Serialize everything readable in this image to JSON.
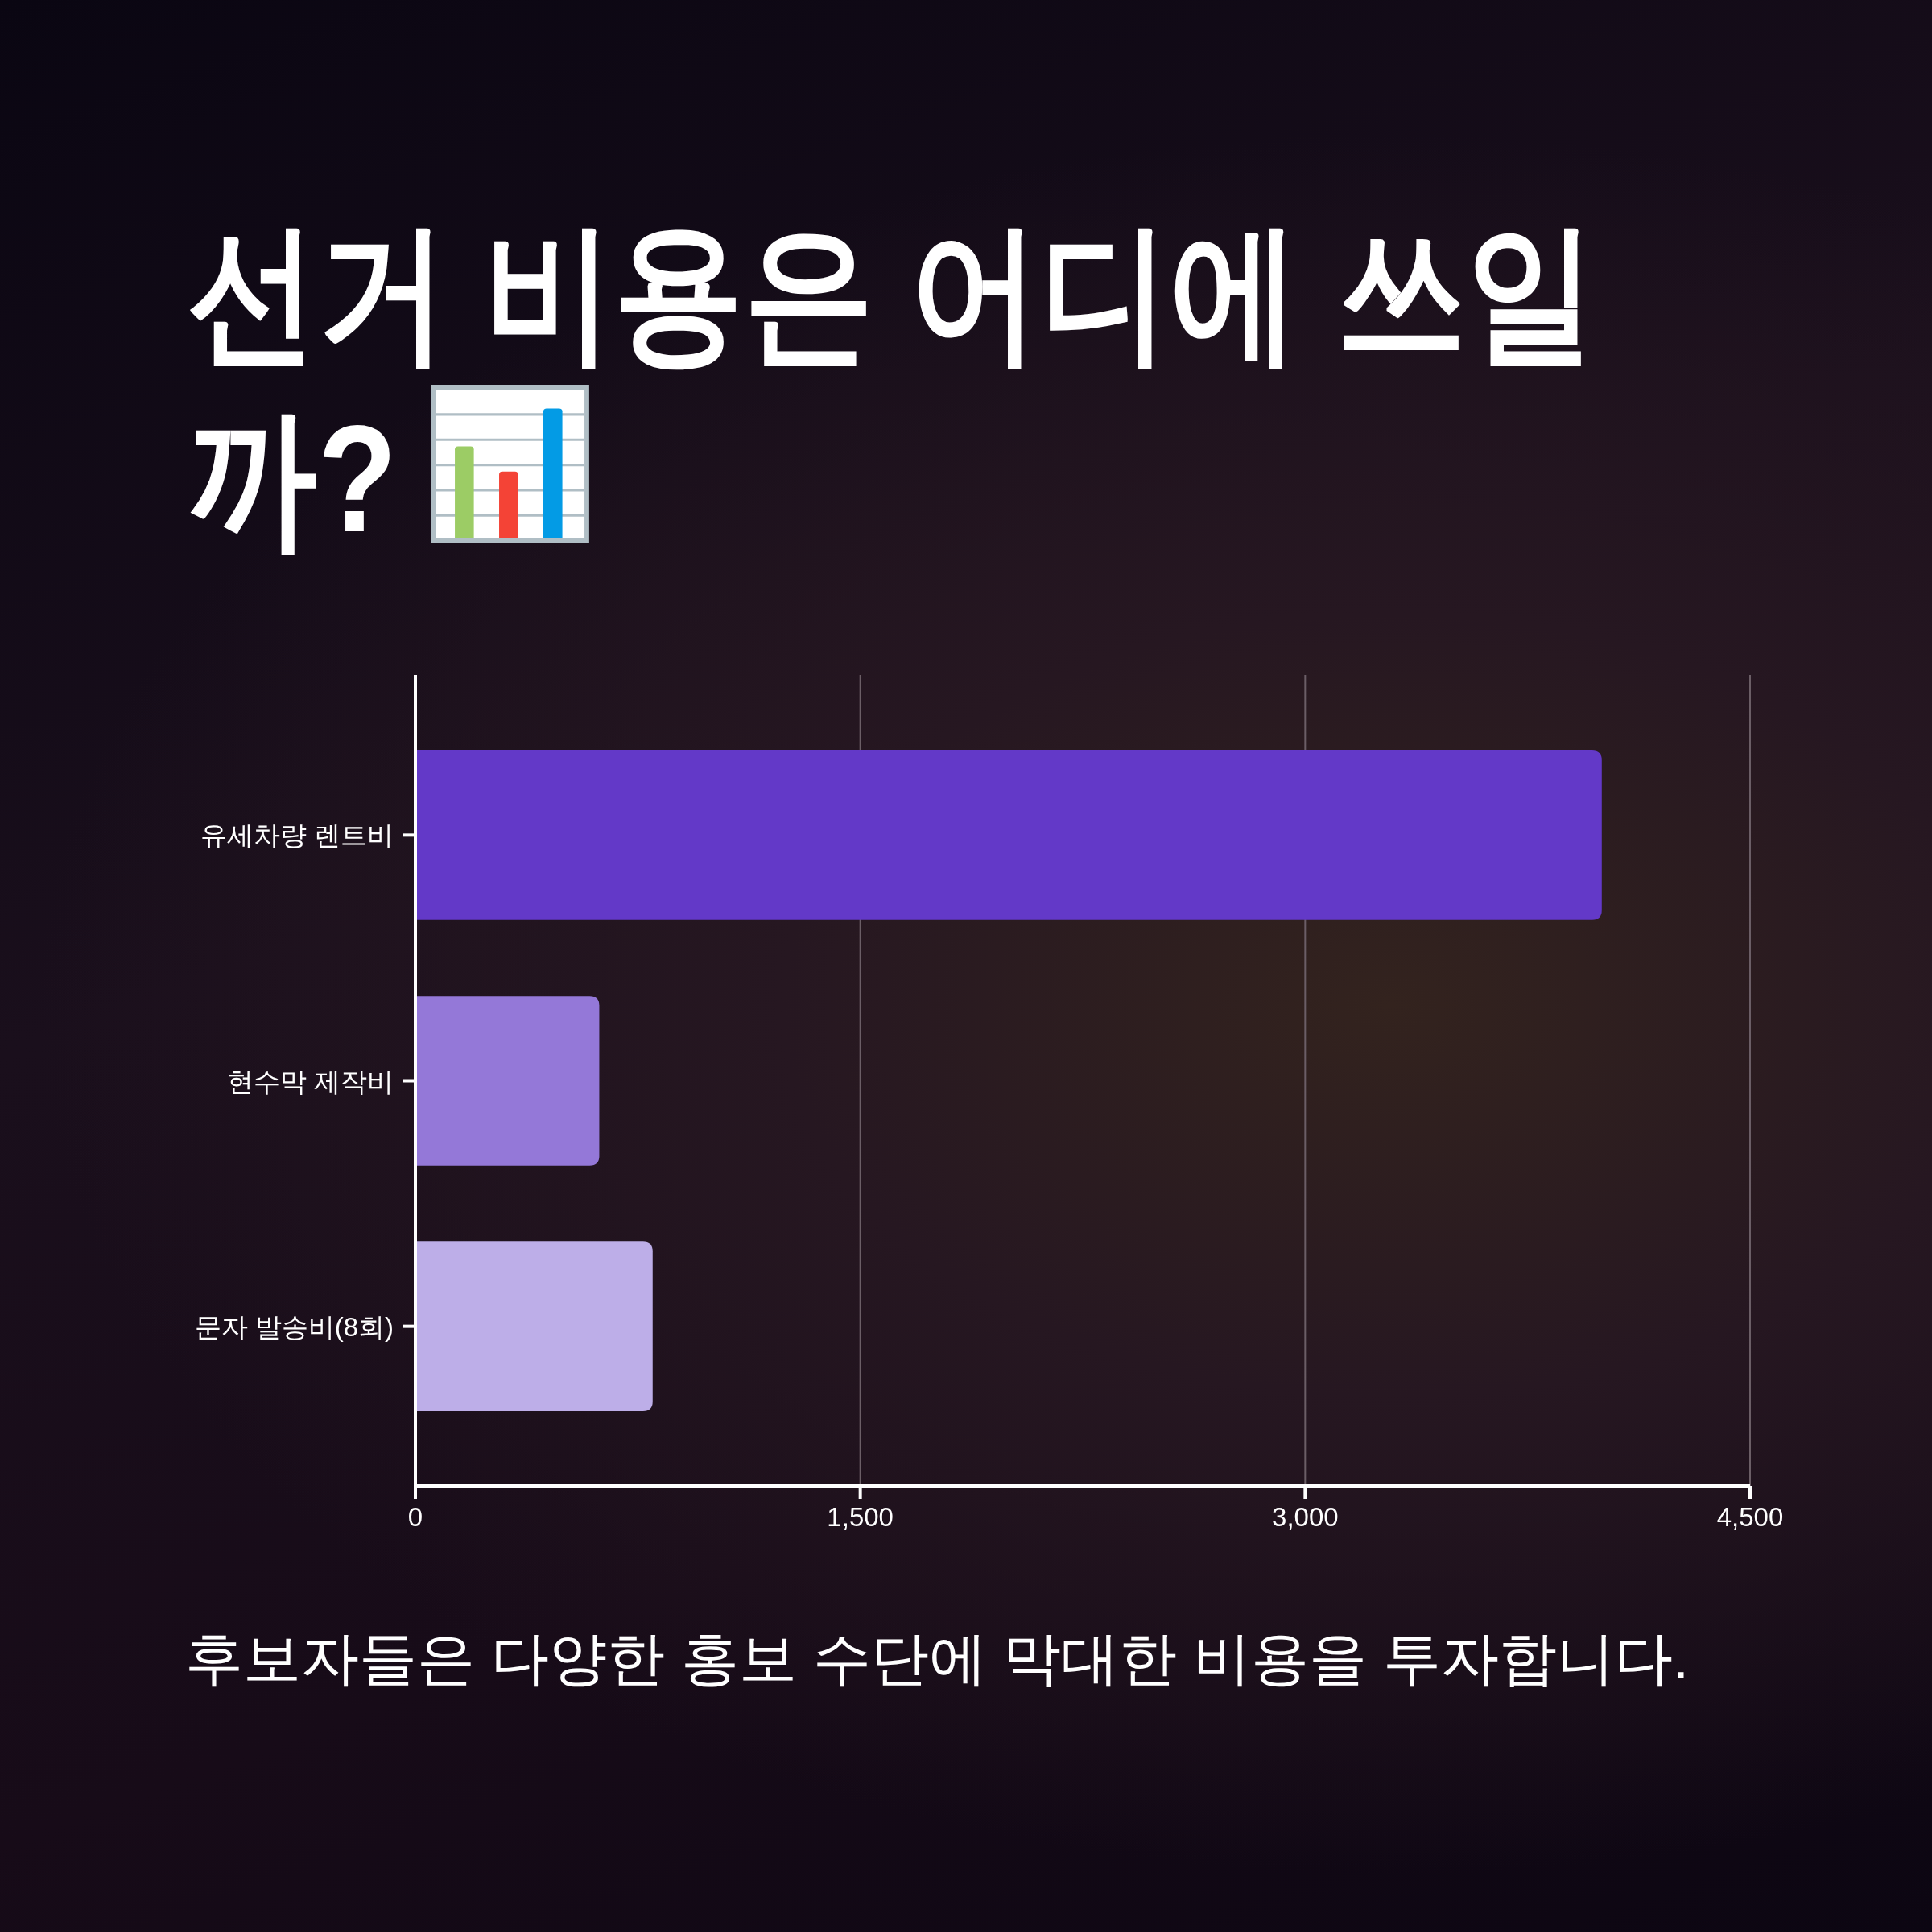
{
  "chart_data": {
    "type": "bar",
    "orientation": "horizontal",
    "title": "선거 비용은 어디에 쓰일까?",
    "annotations": [
      "후보자들은 다양한 홍보 수단에 막대한 비용을 투자합니다."
    ],
    "categories": [
      "유세차량 렌트비",
      "현수막 제작비",
      "문자 발송비(8회)"
    ],
    "values": [
      4000,
      620,
      800
    ],
    "colors": [
      "#6339c8",
      "#9478d8",
      "#bdaee8"
    ],
    "xlim": [
      0,
      4500
    ],
    "xticks": [
      0,
      {
        "value": 1500,
        "label": "1,500"
      },
      {
        "value": 3000,
        "label": "3,000"
      },
      {
        "value": 4500,
        "label": "4,500"
      }
    ],
    "grid": "x"
  }
}
